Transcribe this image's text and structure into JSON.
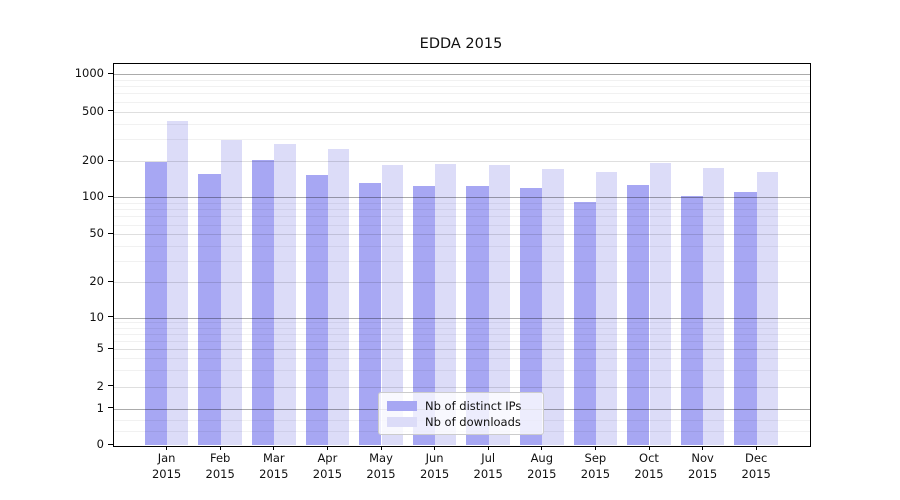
{
  "title": "EDDA 2015",
  "chart_data": {
    "type": "bar",
    "title": "EDDA 2015",
    "categories": [
      "Jan 2015",
      "Feb 2015",
      "Mar 2015",
      "Apr 2015",
      "May 2015",
      "Jun 2015",
      "Jul 2015",
      "Aug 2015",
      "Sep 2015",
      "Oct 2015",
      "Nov 2015",
      "Dec 2015"
    ],
    "series": [
      {
        "name": "Nb of distinct IPs",
        "color": "#a7a7f3",
        "values": [
          196,
          156,
          202,
          152,
          132,
          124,
          125,
          119,
          92,
          126,
          102,
          110
        ]
      },
      {
        "name": "Nb of downloads",
        "color": "#dcdcf8",
        "values": [
          420,
          297,
          274,
          252,
          184,
          190,
          187,
          172,
          163,
          191,
          176,
          163
        ]
      }
    ],
    "yscale": "symlog",
    "yticks": [
      0,
      1,
      2,
      5,
      10,
      20,
      50,
      100,
      200,
      500,
      1000
    ],
    "ylim": [
      0,
      1200
    ],
    "grid": true,
    "legend_position": "inside lower-center"
  }
}
